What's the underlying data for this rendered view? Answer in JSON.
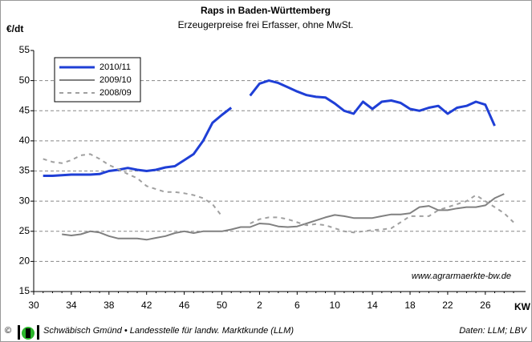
{
  "chart_data": {
    "type": "line",
    "title": "Raps in Baden-Württemberg",
    "subtitle": "Erzeugerpreise frei Erfasser, ohne MwSt.",
    "ylabel": "€/dt",
    "xlabel": "KW",
    "annotation": "www.agrarmaerkte-bw.de",
    "footer_left": "Schwäbisch Gmünd • Landesstelle für landw. Marktkunde (LLM)",
    "footer_right": "Daten: LLM; LBV",
    "copyright": "©",
    "legend": "upper left",
    "grid": true,
    "ylim": [
      15,
      55
    ],
    "yticks": [
      15,
      20,
      25,
      30,
      35,
      40,
      45,
      50,
      55
    ],
    "categories": [
      "30",
      null,
      null,
      null,
      "34",
      null,
      null,
      null,
      "38",
      null,
      null,
      null,
      "42",
      null,
      null,
      null,
      "46",
      null,
      null,
      null,
      "50",
      null,
      null,
      null,
      "2",
      null,
      null,
      null,
      "6",
      null,
      null,
      null,
      "10",
      null,
      null,
      null,
      "14",
      null,
      null,
      null,
      "18",
      null,
      null,
      null,
      "22",
      null,
      null,
      null,
      "26",
      null,
      null,
      null
    ],
    "series": [
      {
        "name": "2010/11",
        "color": "#1f3fd6",
        "style": "solid",
        "width": 3,
        "values": [
          null,
          34.2,
          34.2,
          34.3,
          34.4,
          34.4,
          34.4,
          34.5,
          35.0,
          35.2,
          35.5,
          35.2,
          35.0,
          35.2,
          35.6,
          35.8,
          36.8,
          37.8,
          40.0,
          43.0,
          44.3,
          45.5,
          null,
          47.5,
          49.5,
          50.0,
          49.6,
          48.9,
          48.2,
          47.6,
          47.3,
          47.2,
          46.2,
          45.0,
          44.5,
          46.5,
          45.3,
          46.5,
          46.7,
          46.3,
          45.3,
          45.0,
          45.5,
          45.8,
          44.5,
          45.5,
          45.8,
          46.5,
          46.0,
          42.5,
          null,
          null
        ]
      },
      {
        "name": "2009/10",
        "color": "#808080",
        "style": "solid",
        "width": 2,
        "values": [
          null,
          null,
          null,
          24.5,
          24.3,
          24.5,
          25.0,
          24.8,
          24.2,
          23.8,
          23.8,
          23.8,
          23.6,
          23.9,
          24.2,
          24.7,
          25.0,
          24.7,
          25.0,
          25.0,
          25.0,
          25.3,
          25.7,
          25.7,
          26.3,
          26.2,
          25.8,
          25.7,
          25.8,
          26.3,
          26.8,
          27.3,
          27.7,
          27.5,
          27.2,
          27.2,
          27.2,
          27.5,
          27.8,
          27.8,
          28.0,
          29.0,
          29.2,
          28.5,
          28.5,
          28.8,
          29.0,
          29.0,
          29.3,
          30.5,
          31.2,
          null
        ]
      },
      {
        "name": "2008/09",
        "color": "#a0a0a0",
        "style": "dashed",
        "width": 2,
        "values": [
          null,
          37.0,
          36.5,
          36.3,
          36.8,
          37.6,
          37.8,
          37.0,
          36.0,
          35.3,
          34.5,
          33.8,
          32.5,
          32.0,
          31.5,
          31.5,
          31.3,
          31.0,
          30.5,
          29.5,
          27.5,
          null,
          null,
          26.3,
          27.0,
          27.3,
          27.3,
          27.0,
          26.5,
          26.0,
          26.2,
          26.0,
          25.5,
          25.0,
          24.8,
          25.0,
          25.2,
          25.3,
          25.5,
          26.5,
          27.5,
          27.5,
          27.5,
          28.5,
          29.0,
          29.5,
          30.0,
          31.0,
          30.0,
          29.0,
          28.0,
          26.5
        ]
      }
    ]
  }
}
